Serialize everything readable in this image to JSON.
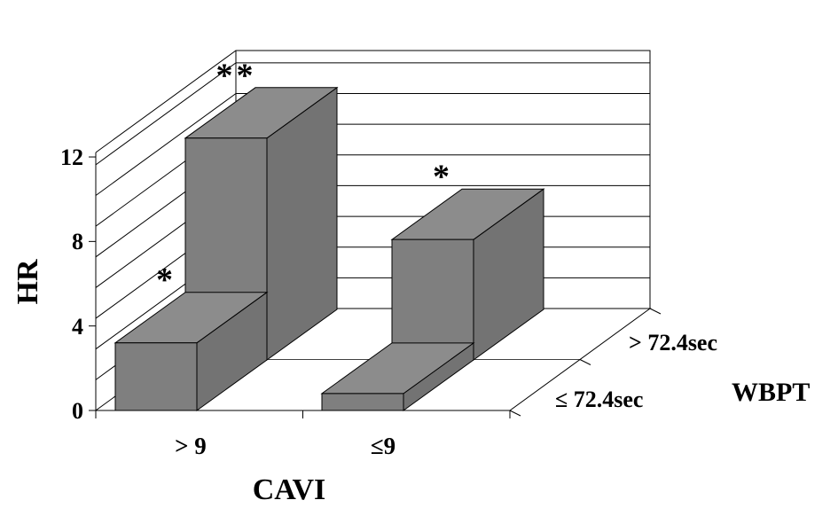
{
  "chart_data": {
    "type": "bar",
    "ylabel": "HR",
    "xlabel": "CAVI",
    "zlabel": "WBPT",
    "categories": [
      "> 9",
      "≤9"
    ],
    "series": [
      {
        "name": "≤ 72.4sec",
        "values": [
          3.2,
          0.8
        ]
      },
      {
        "name": "> 72.4sec",
        "values": [
          10.5,
          5.7
        ]
      }
    ],
    "yticks": [
      "0",
      "4",
      "8",
      "12"
    ],
    "ylim": [
      0,
      12
    ],
    "grid": true,
    "annotations": [
      {
        "series": "≤ 72.4sec",
        "category": "> 9",
        "text": "*"
      },
      {
        "series": "> 72.4sec",
        "category": "> 9",
        "text": "**"
      },
      {
        "series": "> 72.4sec",
        "category": "≤9",
        "text": "*"
      }
    ],
    "colors": {
      "bar_front": "#7f7f7f",
      "bar_side": "#737373",
      "bar_top": "#8c8c8c",
      "edge": "#000000"
    }
  }
}
